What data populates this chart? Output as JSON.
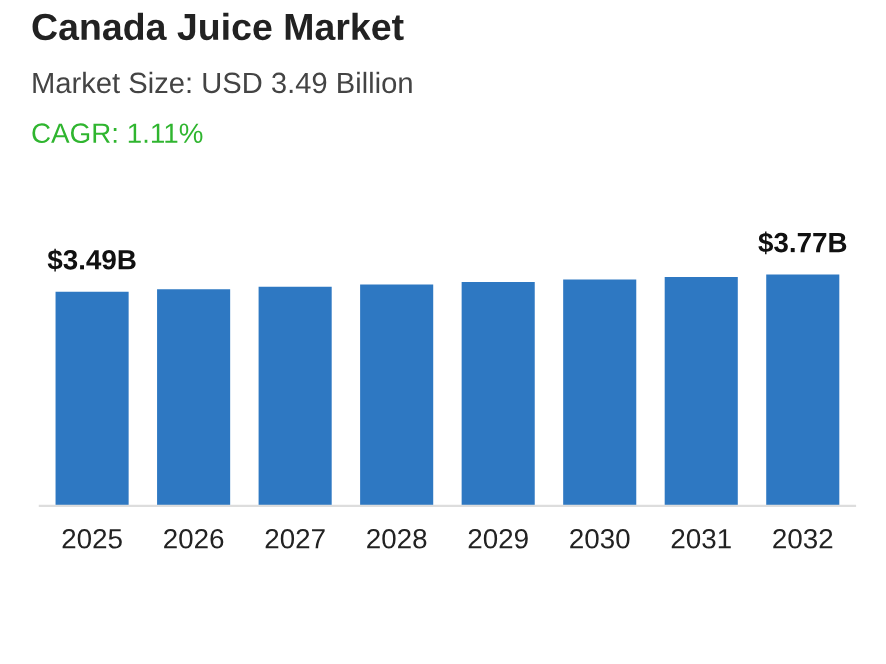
{
  "chart_data": {
    "type": "bar",
    "title": "Canada Juice Market",
    "subtitle": "Market Size: USD 3.49 Billion",
    "annotations": [
      "CAGR: 1.11%"
    ],
    "categories": [
      "2025",
      "2026",
      "2027",
      "2028",
      "2029",
      "2030",
      "2031",
      "2032"
    ],
    "values": [
      3.49,
      3.53,
      3.57,
      3.61,
      3.65,
      3.69,
      3.73,
      3.77
    ],
    "value_labels": [
      "$3.49B",
      null,
      null,
      null,
      null,
      null,
      null,
      "$3.77B"
    ],
    "color": "#2e78c2",
    "grid": false,
    "legend": false
  }
}
